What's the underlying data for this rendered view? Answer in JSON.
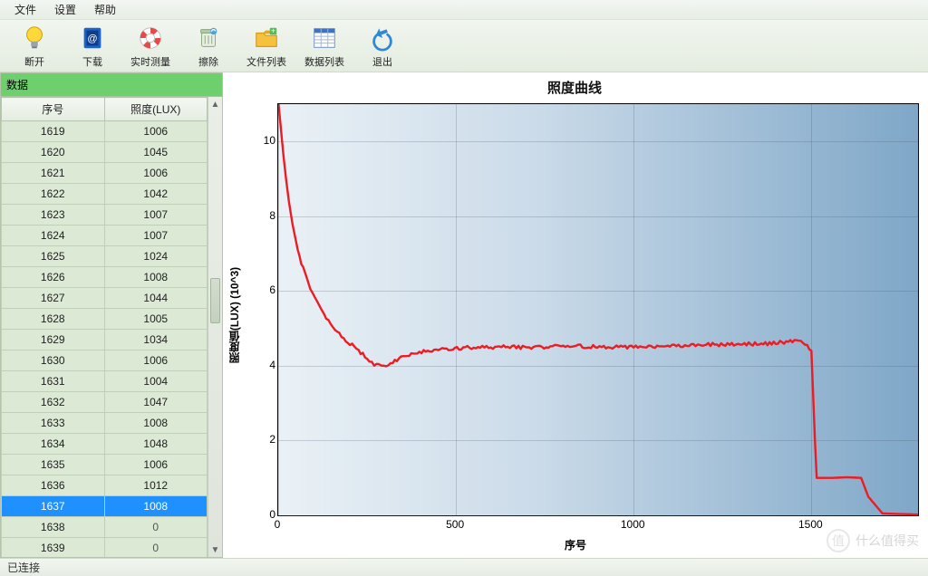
{
  "menu": {
    "items": [
      "文件",
      "设置",
      "帮助"
    ]
  },
  "toolbar": {
    "items": [
      {
        "id": "disconnect",
        "label": "断开",
        "icon": "bulb"
      },
      {
        "id": "download",
        "label": "下载",
        "icon": "book"
      },
      {
        "id": "realtime",
        "label": "实时测量",
        "icon": "lifebuoy"
      },
      {
        "id": "erase",
        "label": "擦除",
        "icon": "bin"
      },
      {
        "id": "filelist",
        "label": "文件列表",
        "icon": "folder"
      },
      {
        "id": "datalist",
        "label": "数据列表",
        "icon": "grid"
      },
      {
        "id": "exit",
        "label": "退出",
        "icon": "exit"
      }
    ]
  },
  "sidebar": {
    "header": "数据",
    "columns": [
      "序号",
      "照度(LUX)"
    ],
    "selectedIndex": 18,
    "rows": [
      {
        "seq": 1619,
        "lux": 1006
      },
      {
        "seq": 1620,
        "lux": 1045
      },
      {
        "seq": 1621,
        "lux": 1006
      },
      {
        "seq": 1622,
        "lux": 1042
      },
      {
        "seq": 1623,
        "lux": 1007
      },
      {
        "seq": 1624,
        "lux": 1007
      },
      {
        "seq": 1625,
        "lux": 1024
      },
      {
        "seq": 1626,
        "lux": 1008
      },
      {
        "seq": 1627,
        "lux": 1044
      },
      {
        "seq": 1628,
        "lux": 1005
      },
      {
        "seq": 1629,
        "lux": 1034
      },
      {
        "seq": 1630,
        "lux": 1006
      },
      {
        "seq": 1631,
        "lux": 1004
      },
      {
        "seq": 1632,
        "lux": 1047
      },
      {
        "seq": 1633,
        "lux": 1008
      },
      {
        "seq": 1634,
        "lux": 1048
      },
      {
        "seq": 1635,
        "lux": 1006
      },
      {
        "seq": 1636,
        "lux": 1012
      },
      {
        "seq": 1637,
        "lux": 1008
      },
      {
        "seq": 1638,
        "lux": 0
      },
      {
        "seq": 1639,
        "lux": 0
      }
    ]
  },
  "chart": {
    "title": "照度曲线",
    "type": "line",
    "x": {
      "label": "序号",
      "min": 0,
      "max": 1800,
      "ticks": [
        0,
        500,
        1000,
        1500
      ],
      "tick_fontsize": 12
    },
    "y": {
      "label": "照度值(LUX) (10^3)",
      "min": 0,
      "max": 11,
      "ticks": [
        0,
        2,
        4,
        6,
        8,
        10
      ],
      "tick_fontsize": 12
    },
    "line_color": "#ed1c24",
    "line_width": 2.4,
    "background_gradient": {
      "from": "#eaf1f6",
      "to": "#7fa7c8"
    },
    "grid_color": "rgba(70,90,110,0.25)",
    "border_color": "#000000",
    "title_fontsize": 15,
    "label_fontsize": 12,
    "series": {
      "x": [
        1,
        3,
        6,
        10,
        15,
        22,
        30,
        40,
        55,
        70,
        90,
        110,
        135,
        160,
        190,
        220,
        250,
        270,
        290,
        310,
        340,
        380,
        450,
        550,
        700,
        850,
        1000,
        1150,
        1300,
        1400,
        1470,
        1500,
        1505,
        1510,
        1515,
        1560,
        1600,
        1640,
        1660,
        1700,
        1800
      ],
      "y": [
        11.0,
        10.8,
        10.5,
        10.1,
        9.6,
        9.0,
        8.4,
        7.8,
        7.1,
        6.6,
        6.1,
        5.7,
        5.3,
        5.0,
        4.7,
        4.45,
        4.2,
        4.05,
        3.98,
        4.05,
        4.2,
        4.35,
        4.45,
        4.5,
        4.5,
        4.52,
        4.5,
        4.55,
        4.58,
        4.6,
        4.7,
        4.4,
        3.2,
        2.0,
        1.0,
        1.0,
        1.02,
        1.0,
        0.5,
        0.05,
        0.02
      ]
    }
  },
  "status": {
    "text": "已连接"
  },
  "watermark": {
    "text": "什么值得买"
  }
}
